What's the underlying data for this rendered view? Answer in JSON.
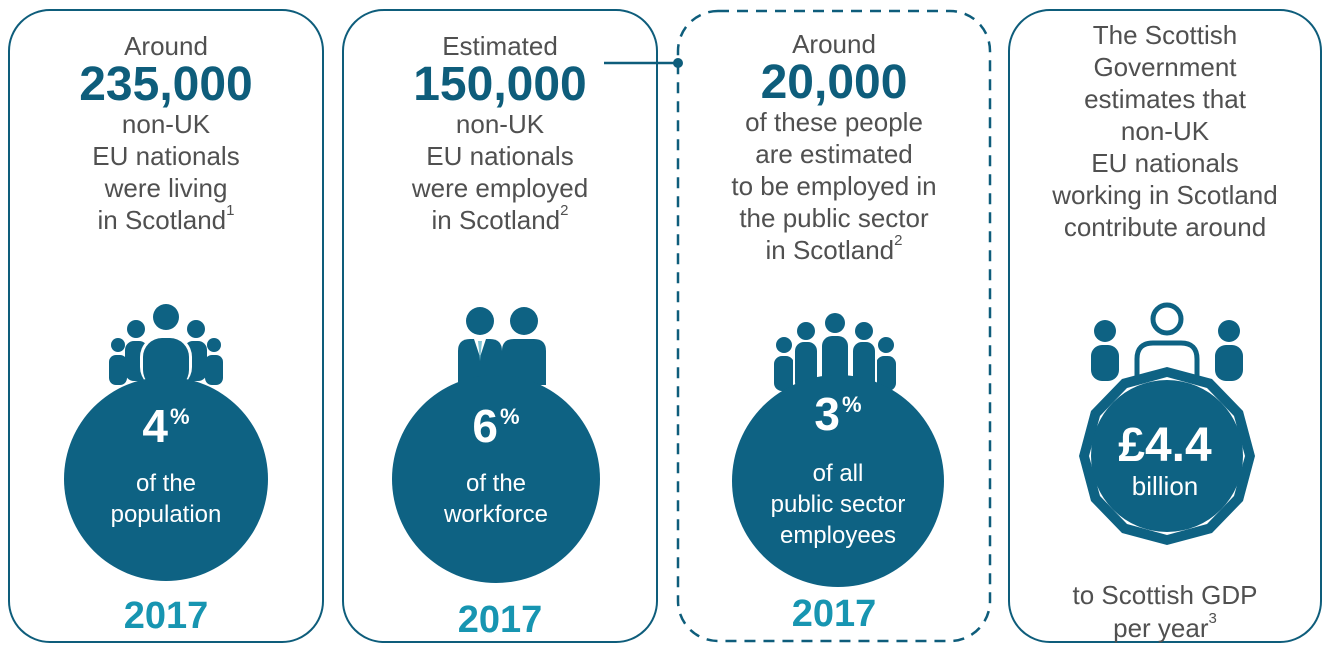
{
  "colors": {
    "primary": "#0e5d7b",
    "accent": "#1795b1",
    "text": "#505050"
  },
  "cards": [
    {
      "intro": "Around",
      "figure": "235,000",
      "lines": [
        "non-UK",
        "EU nationals",
        "were living",
        "in Scotland"
      ],
      "footnote": "1",
      "icon": "crowd-of-people-icon",
      "stat_value": "4",
      "stat_unit": "%",
      "stat_lines": [
        "of the",
        "population"
      ],
      "year": "2017"
    },
    {
      "intro": "Estimated",
      "figure": "150,000",
      "lines": [
        "non-UK",
        "EU nationals",
        "were employed",
        "in Scotland"
      ],
      "footnote": "2",
      "icon": "workers-icon",
      "stat_value": "6",
      "stat_unit": "%",
      "stat_lines": [
        "of the",
        "workforce"
      ],
      "year": "2017"
    },
    {
      "intro": "Around",
      "figure": "20,000",
      "lines": [
        "of these people",
        "are estimated",
        "to be employed in",
        "the public sector",
        "in Scotland"
      ],
      "footnote": "2",
      "icon": "group-of-people-icon",
      "stat_value": "3",
      "stat_unit": "%",
      "stat_lines": [
        "of all",
        "public sector",
        "employees"
      ],
      "year": "2017"
    },
    {
      "lines": [
        "The Scottish",
        "Government",
        "estimates that",
        "non-UK",
        "EU nationals",
        "working in Scotland",
        "contribute around"
      ],
      "icon": "person-on-coin-icon",
      "stat_value": "£4.4",
      "stat_lines": [
        "billion"
      ],
      "bottom_lines": [
        "to Scottish GDP",
        "per year"
      ],
      "footnote": "3"
    }
  ]
}
